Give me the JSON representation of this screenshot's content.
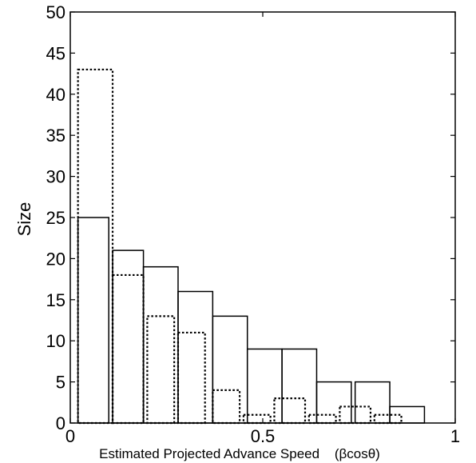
{
  "chart_data": {
    "type": "bar",
    "title": "",
    "xlabel": "Estimated Projected Advance Speed",
    "xlabel_unit": "(βcosθ)",
    "ylabel": "Size",
    "xlim": [
      0,
      1
    ],
    "ylim": [
      0,
      50
    ],
    "xticks": [
      0,
      0.5,
      1
    ],
    "xtick_labels": [
      "0",
      "0.5",
      "1"
    ],
    "yticks": [
      0,
      5,
      10,
      15,
      20,
      25,
      30,
      35,
      40,
      45,
      50
    ],
    "ytick_labels": [
      "0",
      "5",
      "10",
      "15",
      "20",
      "25",
      "30",
      "35",
      "40",
      "45",
      "50"
    ],
    "grid": false,
    "legend": "none",
    "series": [
      {
        "style": "solid",
        "bins": [
          {
            "x0": 0.02,
            "x1": 0.1,
            "value": 25
          },
          {
            "x0": 0.11,
            "x1": 0.19,
            "value": 21
          },
          {
            "x0": 0.19,
            "x1": 0.28,
            "value": 19
          },
          {
            "x0": 0.28,
            "x1": 0.37,
            "value": 16
          },
          {
            "x0": 0.37,
            "x1": 0.46,
            "value": 13
          },
          {
            "x0": 0.46,
            "x1": 0.55,
            "value": 9
          },
          {
            "x0": 0.55,
            "x1": 0.64,
            "value": 9
          },
          {
            "x0": 0.64,
            "x1": 0.73,
            "value": 5
          },
          {
            "x0": 0.74,
            "x1": 0.83,
            "value": 5
          },
          {
            "x0": 0.83,
            "x1": 0.92,
            "value": 2
          }
        ]
      },
      {
        "style": "dotted",
        "bins": [
          {
            "x0": 0.02,
            "x1": 0.11,
            "value": 43
          },
          {
            "x0": 0.11,
            "x1": 0.19,
            "value": 18
          },
          {
            "x0": 0.2,
            "x1": 0.27,
            "value": 13
          },
          {
            "x0": 0.28,
            "x1": 0.35,
            "value": 11
          },
          {
            "x0": 0.37,
            "x1": 0.44,
            "value": 4
          },
          {
            "x0": 0.45,
            "x1": 0.52,
            "value": 1
          },
          {
            "x0": 0.53,
            "x1": 0.61,
            "value": 3
          },
          {
            "x0": 0.62,
            "x1": 0.69,
            "value": 1
          },
          {
            "x0": 0.7,
            "x1": 0.78,
            "value": 2
          },
          {
            "x0": 0.79,
            "x1": 0.86,
            "value": 1
          }
        ]
      }
    ]
  }
}
